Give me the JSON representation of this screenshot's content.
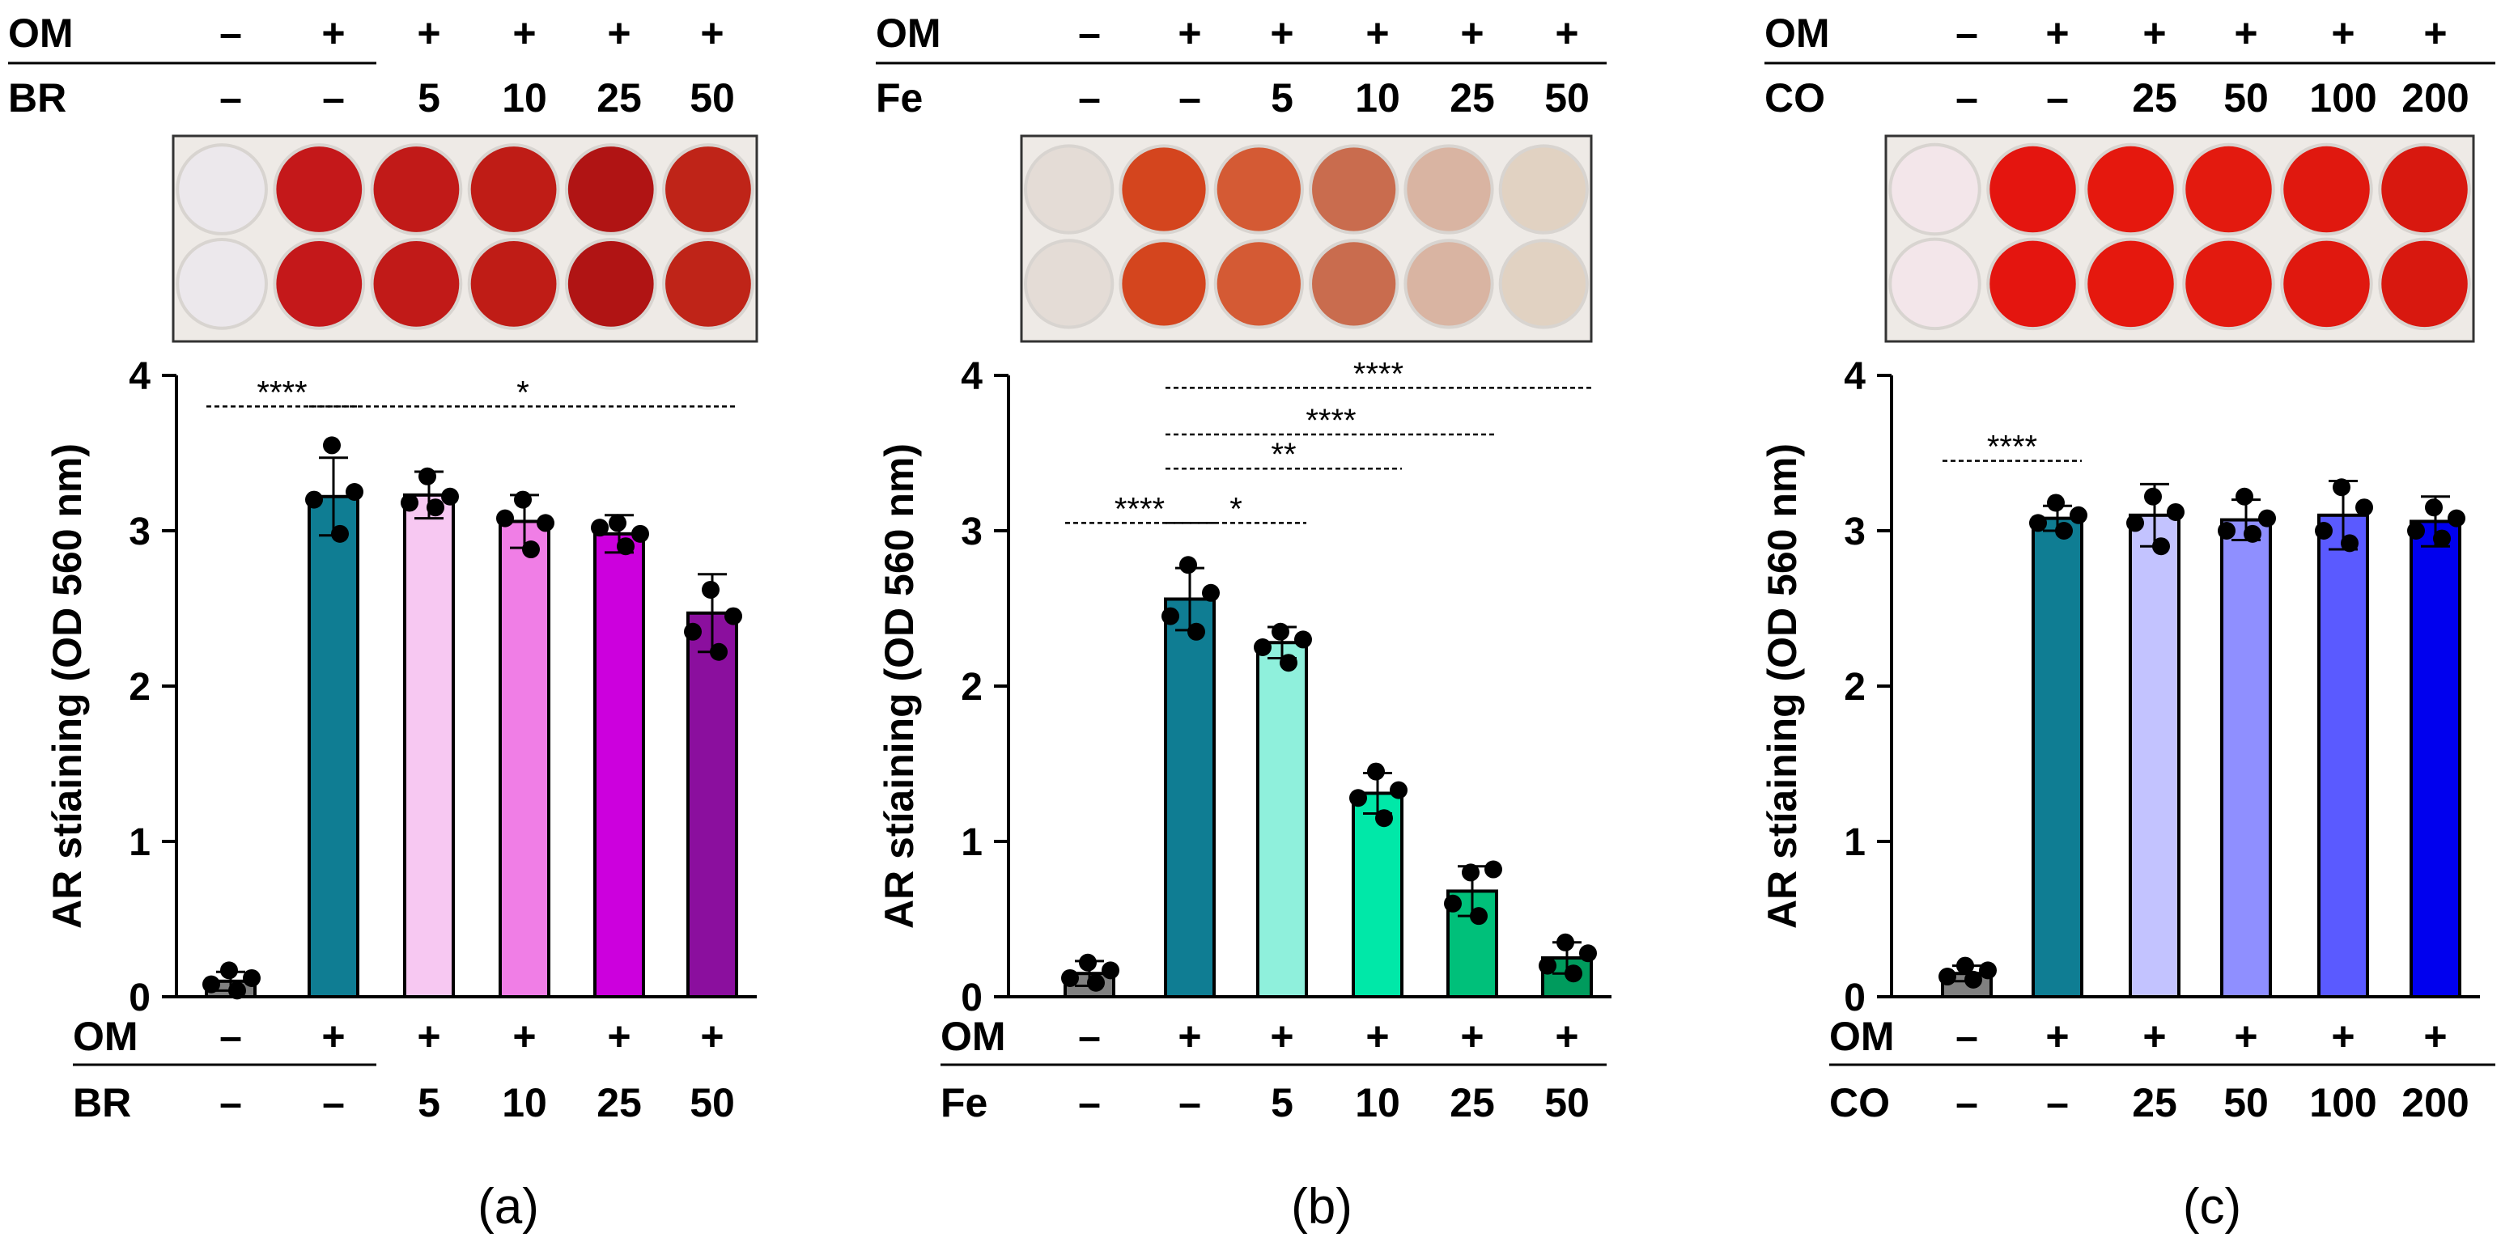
{
  "chart_data": [
    {
      "type": "bar",
      "panel_label": "(a)",
      "row1_label": "OM",
      "row2_label": "BR",
      "om_values": [
        "–",
        "+",
        "+",
        "+",
        "+",
        "+"
      ],
      "row2_values": [
        "–",
        "–",
        "5",
        "10",
        "25",
        "50"
      ],
      "ylabel": "AR stíaining (OD 560 nm)",
      "yticks": [
        "0",
        "1",
        "2",
        "3",
        "4"
      ],
      "ylim": [
        0,
        4
      ],
      "values": [
        0.1,
        3.22,
        3.23,
        3.06,
        2.98,
        2.47
      ],
      "errors": [
        0.06,
        0.25,
        0.15,
        0.17,
        0.12,
        0.25
      ],
      "points": [
        [
          0.17,
          0.12,
          0.08,
          0.04
        ],
        [
          3.55,
          3.25,
          3.2,
          2.98
        ],
        [
          3.35,
          3.22,
          3.18,
          3.15
        ],
        [
          3.2,
          3.05,
          3.08,
          2.88
        ],
        [
          3.05,
          2.98,
          3.02,
          2.9
        ],
        [
          2.62,
          2.45,
          2.35,
          2.22
        ]
      ],
      "colors": [
        "#808080",
        "#0f7d93",
        "#f7c8f2",
        "#f07ee6",
        "#cc00dd",
        "#8b0f9e"
      ],
      "plate_colors": [
        "#ece8ec",
        "#c4181a",
        "#c11a18",
        "#bf1c16",
        "#b01414",
        "#bf2418"
      ],
      "significance": [
        {
          "from": 0,
          "to": 1,
          "y": 3.8,
          "label": "****"
        },
        {
          "from": 1,
          "to": 5,
          "y": 3.8,
          "label": "*"
        }
      ]
    },
    {
      "type": "bar",
      "panel_label": "(b)",
      "row1_label": "OM",
      "row2_label": "Fe",
      "om_values": [
        "–",
        "+",
        "+",
        "+",
        "+",
        "+"
      ],
      "row2_values": [
        "–",
        "–",
        "5",
        "10",
        "25",
        "50"
      ],
      "ylabel": "AR stíaining (OD 560 nm)",
      "yticks": [
        "0",
        "1",
        "2",
        "3",
        "4"
      ],
      "ylim": [
        0,
        4
      ],
      "values": [
        0.15,
        2.56,
        2.28,
        1.31,
        0.68,
        0.25
      ],
      "errors": [
        0.08,
        0.2,
        0.1,
        0.13,
        0.16,
        0.1
      ],
      "points": [
        [
          0.22,
          0.17,
          0.12,
          0.09
        ],
        [
          2.78,
          2.6,
          2.45,
          2.35
        ],
        [
          2.35,
          2.3,
          2.25,
          2.15
        ],
        [
          1.45,
          1.33,
          1.28,
          1.15
        ],
        [
          0.8,
          0.82,
          0.6,
          0.52
        ],
        [
          0.35,
          0.28,
          0.2,
          0.15
        ]
      ],
      "colors": [
        "#808080",
        "#0f7d93",
        "#8ff0dc",
        "#00e8a8",
        "#00c07a",
        "#009b5d"
      ],
      "plate_colors": [
        "#e4dcd6",
        "#d4451e",
        "#d45a34",
        "#c96c4e",
        "#d9b4a2",
        "#e1d2c2"
      ],
      "significance": [
        {
          "from": 0,
          "to": 1,
          "y": 3.05,
          "label": "****"
        },
        {
          "from": 1,
          "to": 2,
          "y": 3.05,
          "label": "*"
        },
        {
          "from": 1,
          "to": 3,
          "y": 3.4,
          "label": "**"
        },
        {
          "from": 1,
          "to": 4,
          "y": 3.62,
          "label": "****"
        },
        {
          "from": 1,
          "to": 5,
          "y": 3.92,
          "label": "****"
        }
      ]
    },
    {
      "type": "bar",
      "panel_label": "(c)",
      "row1_label": "OM",
      "row2_label": "CO",
      "om_values": [
        "–",
        "+",
        "+",
        "+",
        "+",
        "+"
      ],
      "row2_values": [
        "–",
        "–",
        "25",
        "50",
        "100",
        "200"
      ],
      "ylabel": "AR stíaining (OD 560 nm)",
      "yticks": [
        "0",
        "1",
        "2",
        "3",
        "4"
      ],
      "ylim": [
        0,
        4
      ],
      "values": [
        0.15,
        3.08,
        3.1,
        3.07,
        3.1,
        3.06
      ],
      "errors": [
        0.05,
        0.08,
        0.2,
        0.13,
        0.22,
        0.16
      ],
      "points": [
        [
          0.2,
          0.17,
          0.13,
          0.11
        ],
        [
          3.18,
          3.1,
          3.05,
          3.0
        ],
        [
          3.22,
          3.12,
          3.05,
          2.9
        ],
        [
          3.22,
          3.08,
          3.0,
          2.98
        ],
        [
          3.28,
          3.15,
          3.0,
          2.92
        ],
        [
          3.15,
          3.08,
          3.0,
          2.95
        ]
      ],
      "colors": [
        "#808080",
        "#0f7d93",
        "#c3c3ff",
        "#8f8fff",
        "#5a5aff",
        "#0000ee"
      ],
      "plate_colors": [
        "#f3e6ea",
        "#e4150f",
        "#e5180e",
        "#e31a0f",
        "#e0180f",
        "#d8180f"
      ],
      "significance": [
        {
          "from": 0,
          "to": 1,
          "y": 3.45,
          "label": "****"
        }
      ]
    }
  ]
}
